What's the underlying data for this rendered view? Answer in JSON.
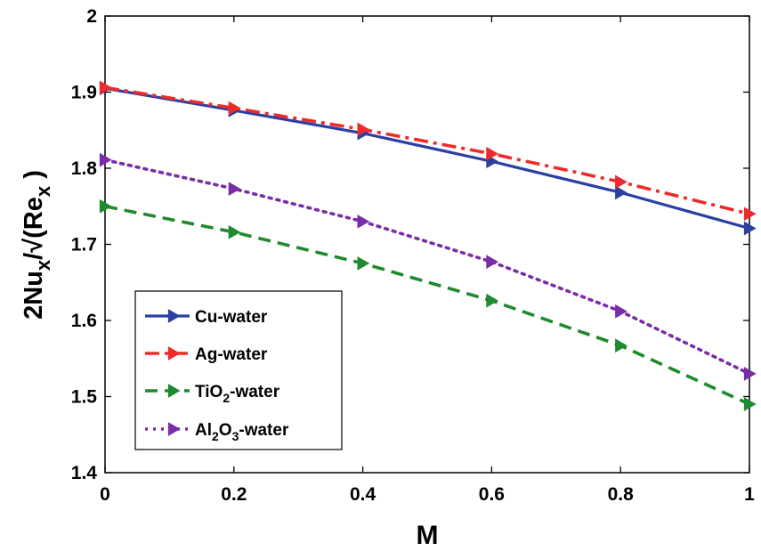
{
  "chart_data": {
    "type": "line",
    "title": "",
    "xlabel": "M",
    "ylabel": {
      "main": "2Nu",
      "sub": "x",
      "mid": "/√(Re",
      "sub2": "x",
      "end": " )"
    },
    "xlim": [
      0,
      1
    ],
    "ylim": [
      1.4,
      2.0
    ],
    "xticks": [
      "0",
      "0.2",
      "0.4",
      "0.6",
      "0.8",
      "1"
    ],
    "yticks": [
      "1.4",
      "1.5",
      "1.6",
      "1.7",
      "1.8",
      "1.9",
      "2"
    ],
    "x": [
      0,
      0.2,
      0.4,
      0.6,
      0.8,
      1.0
    ],
    "legend_position": "bottom-left",
    "series": [
      {
        "name": "Cu-water",
        "label_parts": [
          "Cu-water"
        ],
        "color": "#2b3fa3",
        "dash": "solid",
        "values": [
          1.905,
          1.876,
          1.846,
          1.809,
          1.768,
          1.721
        ]
      },
      {
        "name": "Ag-water",
        "label_parts": [
          "Ag-water"
        ],
        "color": "#ee2a2a",
        "dash": "dashdot",
        "values": [
          1.906,
          1.879,
          1.851,
          1.819,
          1.782,
          1.74
        ]
      },
      {
        "name": "TiO2-water",
        "label_parts": [
          "TiO",
          "2",
          "-water"
        ],
        "color": "#1f8a2e",
        "dash": "dashed",
        "values": [
          1.75,
          1.716,
          1.675,
          1.626,
          1.567,
          1.49
        ]
      },
      {
        "name": "Al2O3-water",
        "label_parts": [
          "Al",
          "2",
          "O",
          "3",
          "-water"
        ],
        "color": "#7a2da8",
        "dash": "dotted",
        "values": [
          1.811,
          1.773,
          1.73,
          1.677,
          1.612,
          1.53
        ]
      }
    ]
  }
}
